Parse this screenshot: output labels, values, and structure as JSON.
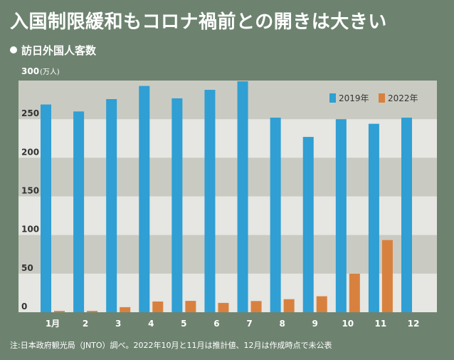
{
  "title": "入国制限緩和もコロナ禍前との開きは大きい",
  "subtitle": "訪日外国人客数",
  "footnote": "注:日本政府観光局（JNTO）調べ。2022年10月と11月は推計値、12月は作成時点で未公表",
  "colors": {
    "series_2019": "#2f9fd4",
    "series_2022": "#d8813f",
    "band_light": "#e6e6e2",
    "band_dark": "#c9cbc2"
  },
  "chart_data": {
    "type": "bar",
    "title": "訪日外国人客数",
    "ylabel": "(万人)",
    "ylim": [
      0,
      300
    ],
    "yticks": [
      "0",
      "50",
      "100",
      "150",
      "200",
      "250",
      "300"
    ],
    "y_unit_label": "(万人)",
    "categories": [
      "1月",
      "2",
      "3",
      "4",
      "5",
      "6",
      "7",
      "8",
      "9",
      "10",
      "11",
      "12"
    ],
    "series": [
      {
        "name": "2019年",
        "values": [
          269,
          260,
          276,
          293,
          277,
          288,
          299,
          252,
          227,
          250,
          244,
          252
        ]
      },
      {
        "name": "2022年",
        "values": [
          1.7,
          1.7,
          6.6,
          13.9,
          14.7,
          12.1,
          14.5,
          16.9,
          20.7,
          49.9,
          93.5,
          null
        ]
      }
    ],
    "grid": "alternating-bands",
    "legend_position": "top-right"
  }
}
